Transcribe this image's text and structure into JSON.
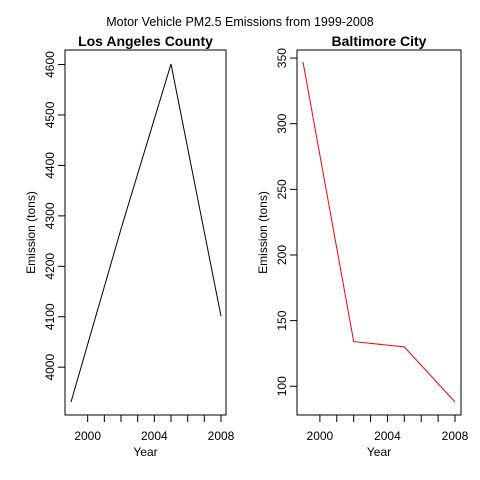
{
  "figure": {
    "title": "Motor Vehicle PM2.5 Emissions from 1999-2008"
  },
  "chart_data": [
    {
      "type": "line",
      "title": "Los Angeles County",
      "xlabel": "Year",
      "ylabel": "Emission (tons)",
      "x": [
        1999,
        2002,
        2005,
        2008
      ],
      "series": [
        {
          "values": [
            3931,
            4274,
            4601,
            4101
          ],
          "color": "#000000"
        }
      ],
      "xlim": [
        1999,
        2008
      ],
      "ylim": [
        3931,
        4601
      ],
      "xticks": [
        2000,
        2001,
        2002,
        2003,
        2004,
        2005,
        2006,
        2007,
        2008
      ],
      "xtick_labels": [
        "2000",
        "",
        "",
        "",
        "2004",
        "",
        "",
        "",
        "2008"
      ],
      "yticks": [
        4000,
        4100,
        4200,
        4300,
        4400,
        4500,
        4600
      ],
      "ytick_labels": [
        "4000",
        "4100",
        "4200",
        "4300",
        "4400",
        "4500",
        "4600"
      ],
      "grid": false,
      "legend": "none"
    },
    {
      "type": "line",
      "title": "Baltimore City",
      "xlabel": "Year",
      "ylabel": "Emission (tons)",
      "x": [
        1999,
        2002,
        2005,
        2008
      ],
      "series": [
        {
          "values": [
            347,
            134,
            130,
            88
          ],
          "color": "#ff0000"
        }
      ],
      "xlim": [
        1999,
        2008
      ],
      "ylim": [
        88,
        347
      ],
      "xticks": [
        2000,
        2001,
        2002,
        2003,
        2004,
        2005,
        2006,
        2007,
        2008
      ],
      "xtick_labels": [
        "2000",
        "",
        "",
        "",
        "2004",
        "",
        "",
        "",
        "2008"
      ],
      "yticks": [
        100,
        150,
        200,
        250,
        300,
        350
      ],
      "ytick_labels": [
        "100",
        "150",
        "200",
        "250",
        "300",
        "350"
      ],
      "grid": false,
      "legend": "none"
    }
  ]
}
